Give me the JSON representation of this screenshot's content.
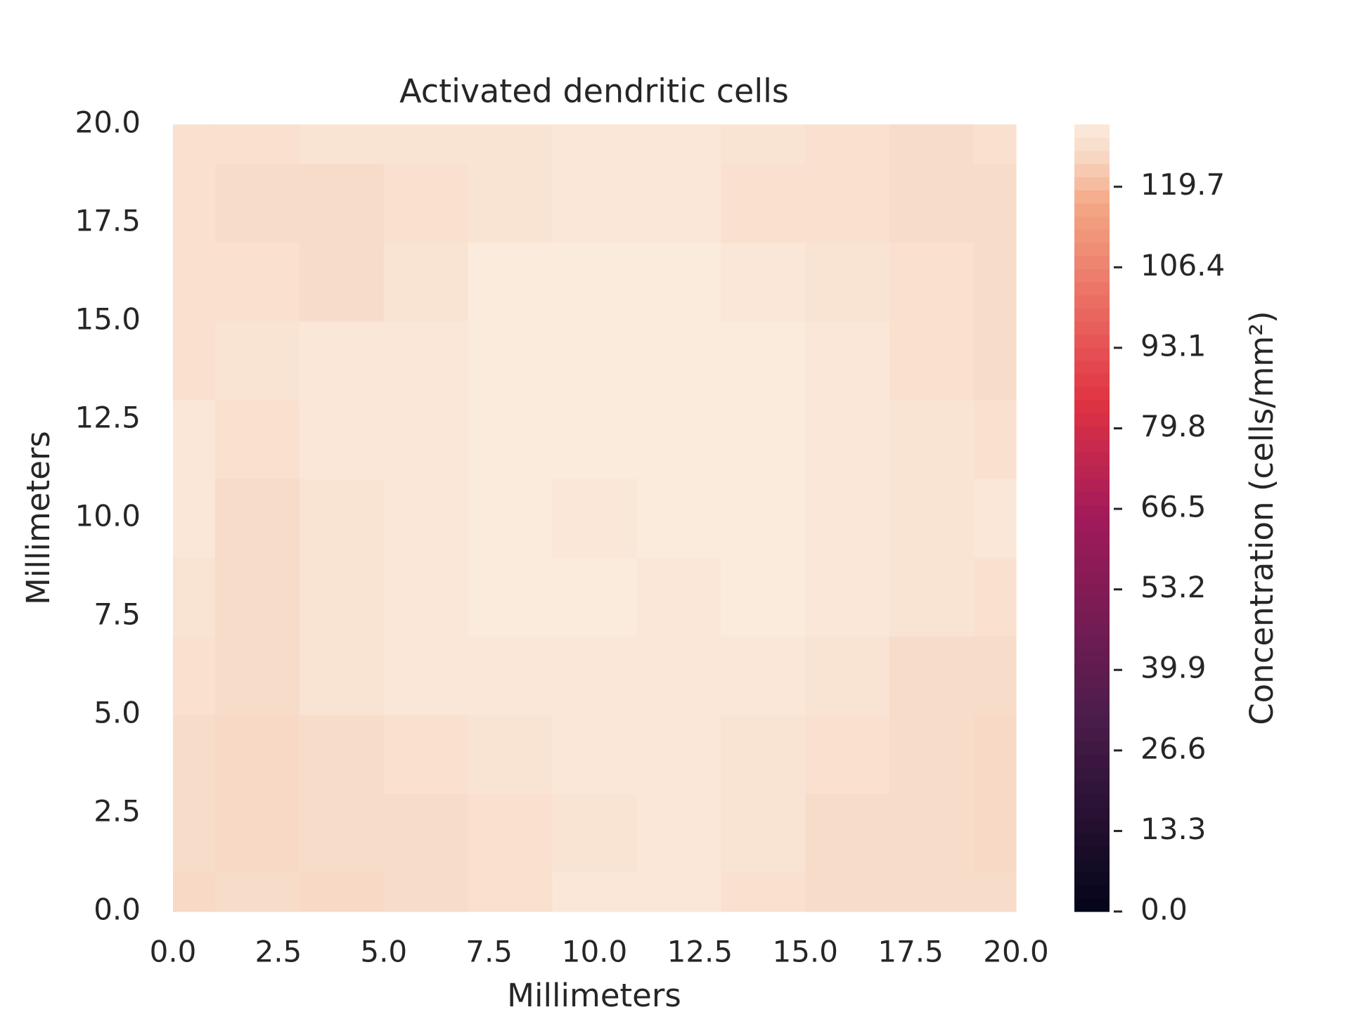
{
  "chart_data": {
    "type": "contour",
    "title": "Activated dendritic cells",
    "xlabel": "Millimeters",
    "ylabel": "Millimeters",
    "colorbar_label": "Concentration (cells/mm²)",
    "x": [
      0,
      2,
      4,
      6,
      8,
      10,
      12,
      14,
      16,
      18,
      20
    ],
    "y": [
      0,
      2,
      4,
      6,
      8,
      10,
      12,
      14,
      16,
      18,
      20
    ],
    "z": [
      [
        125,
        126,
        125,
        126,
        127,
        129,
        129,
        127,
        126,
        126,
        126
      ],
      [
        126,
        125,
        126,
        126,
        127,
        128,
        129,
        128,
        126,
        126,
        125
      ],
      [
        126,
        125,
        126,
        127,
        128,
        129,
        129,
        128,
        127,
        126,
        125
      ],
      [
        127,
        126,
        128,
        129,
        129,
        129,
        129,
        129,
        128,
        126,
        126
      ],
      [
        128,
        126,
        128,
        129,
        130,
        130,
        129,
        130,
        129,
        128,
        127
      ],
      [
        129,
        126,
        128,
        129,
        130,
        129,
        130,
        130,
        129,
        128,
        129
      ],
      [
        129,
        127,
        129,
        129,
        130,
        130,
        130,
        130,
        129,
        128,
        127
      ],
      [
        127,
        128,
        129,
        129,
        130,
        130,
        130,
        130,
        129,
        127,
        126
      ],
      [
        127,
        127,
        126,
        128,
        130,
        130,
        130,
        129,
        128,
        127,
        126
      ],
      [
        127,
        126,
        126,
        127,
        128,
        129,
        129,
        127,
        127,
        126,
        126
      ],
      [
        127,
        127,
        128,
        128,
        128,
        129,
        129,
        128,
        127,
        126,
        127
      ]
    ],
    "xlim": [
      0,
      20
    ],
    "ylim": [
      0,
      20
    ],
    "xticks": [
      {
        "value": 0,
        "label": "0.0"
      },
      2.5,
      {
        "value": 5,
        "label": "5.0"
      },
      7.5,
      {
        "value": 10,
        "label": "10.0"
      },
      12.5,
      {
        "value": 15,
        "label": "15.0"
      },
      17.5,
      {
        "value": 20,
        "label": "20.0"
      }
    ],
    "yticks": [
      {
        "value": 0,
        "label": "0.0"
      },
      2.5,
      {
        "value": 5,
        "label": "5.0"
      },
      7.5,
      {
        "value": 10,
        "label": "10.0"
      },
      12.5,
      {
        "value": 15,
        "label": "15.0"
      },
      17.5,
      {
        "value": 20,
        "label": "20.0"
      }
    ],
    "clim": [
      0,
      130
    ],
    "cticks": [
      {
        "value": 0,
        "label": "0.0"
      },
      13.3,
      26.6,
      39.9,
      53.2,
      66.5,
      79.8,
      93.1,
      106.4,
      119.7
    ],
    "colormap": [
      "#03051a",
      "#4c1d4b",
      "#a11a5b",
      "#e13342",
      "#f4a885",
      "#f8d8c4",
      "#faebdd"
    ],
    "colormap_positions": [
      0,
      0.25,
      0.5,
      0.65,
      0.9,
      0.96,
      1
    ]
  }
}
